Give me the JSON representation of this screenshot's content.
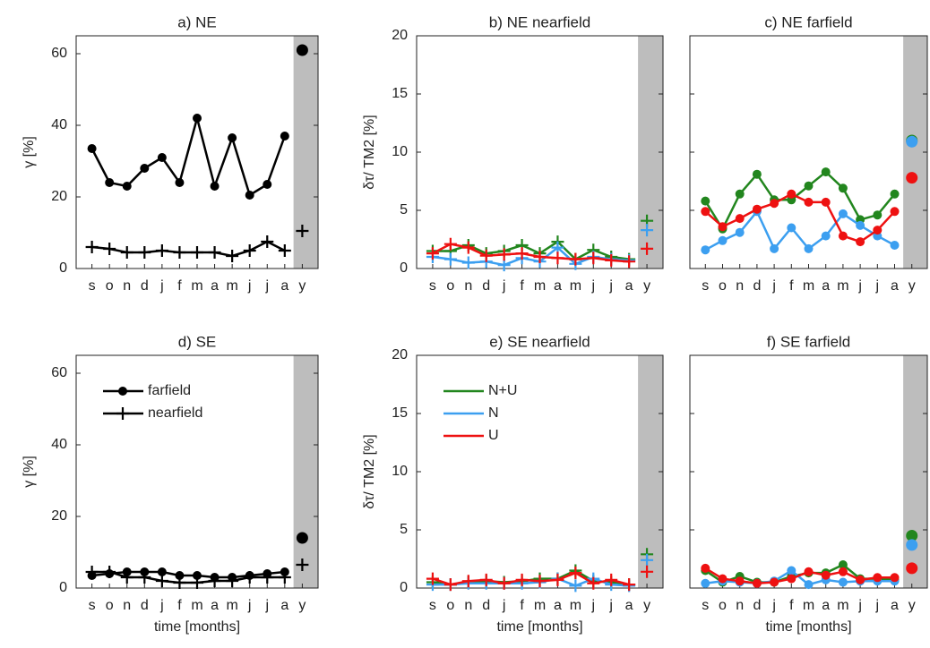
{
  "chart_data": [
    {
      "type": "line",
      "title": "a) NE",
      "ylabel": "γ [%]",
      "categories": [
        "s",
        "o",
        "n",
        "d",
        "j",
        "f",
        "m",
        "a",
        "m",
        "j",
        "j",
        "a",
        "y"
      ],
      "ylim": [
        0,
        65
      ],
      "yticks": [
        0,
        20,
        40,
        60
      ],
      "ytick_labels": true,
      "series": [
        {
          "name": "farfield",
          "color": "#000000",
          "marker": "dot",
          "values": [
            33.5,
            24,
            23,
            28,
            31,
            24,
            42,
            23,
            36.5,
            20.5,
            23.5,
            37,
            61
          ]
        },
        {
          "name": "nearfield",
          "color": "#000000",
          "marker": "plus",
          "values": [
            6,
            5.5,
            4.5,
            4.5,
            5,
            4.5,
            4.5,
            4.5,
            3.5,
            5,
            7.5,
            5,
            10.5
          ]
        }
      ]
    },
    {
      "type": "line",
      "title": "b) NE nearfield",
      "ylabel": "δτ/ TM2 [%]",
      "categories": [
        "s",
        "o",
        "n",
        "d",
        "j",
        "f",
        "m",
        "a",
        "m",
        "j",
        "j",
        "a",
        "y"
      ],
      "ylim": [
        0,
        20
      ],
      "yticks": [
        0,
        5,
        10,
        15,
        20
      ],
      "ytick_labels": true,
      "series": [
        {
          "name": "N+U",
          "color": "#22861e",
          "marker": "plus",
          "values": [
            1.5,
            1.5,
            2,
            1.3,
            1.5,
            2,
            1.3,
            2.3,
            0.8,
            1.6,
            1,
            0.8,
            4.1
          ]
        },
        {
          "name": "N",
          "color": "#3c9ff0",
          "marker": "plus",
          "values": [
            1,
            0.8,
            0.5,
            0.6,
            0.3,
            0.9,
            0.6,
            1.8,
            0.4,
            1,
            0.8,
            0.7,
            3.3
          ]
        },
        {
          "name": "U",
          "color": "#ee1111",
          "marker": "plus",
          "values": [
            1.3,
            2.1,
            1.8,
            1.1,
            1.2,
            1.3,
            1,
            0.9,
            0.8,
            0.9,
            0.7,
            0.6,
            1.7
          ]
        }
      ]
    },
    {
      "type": "line",
      "title": "c) NE farfield",
      "categories": [
        "s",
        "o",
        "n",
        "d",
        "j",
        "f",
        "m",
        "a",
        "m",
        "j",
        "j",
        "a",
        "y"
      ],
      "ylim": [
        0,
        20
      ],
      "yticks": [
        0,
        5,
        10,
        15,
        20
      ],
      "ytick_labels": false,
      "series": [
        {
          "name": "N+U",
          "color": "#22861e",
          "marker": "dot",
          "values": [
            5.8,
            3.4,
            6.4,
            8.1,
            5.9,
            5.9,
            7.1,
            8.3,
            6.9,
            4.2,
            4.6,
            6.4,
            11
          ]
        },
        {
          "name": "N",
          "color": "#3c9ff0",
          "marker": "dot",
          "values": [
            1.6,
            2.4,
            3.1,
            4.9,
            1.7,
            3.5,
            1.7,
            2.8,
            4.7,
            3.7,
            2.8,
            2,
            10.9
          ]
        },
        {
          "name": "U",
          "color": "#ee1111",
          "marker": "dot",
          "values": [
            4.9,
            3.6,
            4.3,
            5.1,
            5.6,
            6.4,
            5.7,
            5.7,
            2.8,
            2.3,
            3.3,
            4.9,
            7.8
          ]
        }
      ]
    },
    {
      "type": "line",
      "title": "d) SE",
      "ylabel": "γ [%]",
      "xlabel": "time [months]",
      "categories": [
        "s",
        "o",
        "n",
        "d",
        "j",
        "f",
        "m",
        "a",
        "m",
        "j",
        "j",
        "a",
        "y"
      ],
      "ylim": [
        0,
        65
      ],
      "yticks": [
        0,
        20,
        40,
        60
      ],
      "ytick_labels": true,
      "legend": "upper left",
      "series": [
        {
          "name": "farfield",
          "color": "#000000",
          "marker": "dot",
          "values": [
            3.5,
            4,
            4.5,
            4.5,
            4.5,
            3.5,
            3.5,
            3,
            3,
            3.5,
            4,
            4.5,
            14
          ]
        },
        {
          "name": "nearfield",
          "color": "#000000",
          "marker": "plus",
          "values": [
            4.5,
            4.5,
            3,
            3,
            2,
            1.5,
            1.5,
            2,
            2,
            3,
            3,
            3,
            6.5
          ]
        }
      ]
    },
    {
      "type": "line",
      "title": "e) SE nearfield",
      "ylabel": "δτ/ TM2 [%]",
      "xlabel": "time [months]",
      "categories": [
        "s",
        "o",
        "n",
        "d",
        "j",
        "f",
        "m",
        "a",
        "m",
        "j",
        "j",
        "a",
        "y"
      ],
      "ylim": [
        0,
        20
      ],
      "yticks": [
        0,
        5,
        10,
        15,
        20
      ],
      "ytick_labels": true,
      "legend": "upper left",
      "series": [
        {
          "name": "N+U",
          "color": "#22861e",
          "marker": "plus",
          "values": [
            0.5,
            0.3,
            0.5,
            0.6,
            0.5,
            0.6,
            0.8,
            0.8,
            1.5,
            0.6,
            0.5,
            0.3,
            2.9
          ]
        },
        {
          "name": "N",
          "color": "#3c9ff0",
          "marker": "plus",
          "values": [
            0.3,
            0.3,
            0.4,
            0.4,
            0.4,
            0.4,
            0.5,
            0.8,
            0.2,
            0.8,
            0.3,
            0.2,
            2.4
          ]
        },
        {
          "name": "U",
          "color": "#ee1111",
          "marker": "plus",
          "values": [
            0.8,
            0.3,
            0.6,
            0.7,
            0.4,
            0.7,
            0.6,
            0.7,
            1.3,
            0.4,
            0.7,
            0.3,
            1.4
          ]
        }
      ]
    },
    {
      "type": "line",
      "title": "f) SE farfield",
      "xlabel": "time [months]",
      "categories": [
        "s",
        "o",
        "n",
        "d",
        "j",
        "f",
        "m",
        "a",
        "m",
        "j",
        "j",
        "a",
        "y"
      ],
      "ylim": [
        0,
        20
      ],
      "yticks": [
        0,
        5,
        10,
        15,
        20
      ],
      "ytick_labels": false,
      "series": [
        {
          "name": "N+U",
          "color": "#22861e",
          "marker": "dot",
          "values": [
            1.5,
            0.5,
            1,
            0.5,
            0.5,
            1,
            1.3,
            1.3,
            2,
            0.8,
            0.8,
            0.7,
            4.5
          ]
        },
        {
          "name": "N",
          "color": "#3c9ff0",
          "marker": "dot",
          "values": [
            0.4,
            0.6,
            0.5,
            0.4,
            0.6,
            1.5,
            0.3,
            0.7,
            0.5,
            0.6,
            0.6,
            0.6,
            3.7
          ]
        },
        {
          "name": "U",
          "color": "#ee1111",
          "marker": "dot",
          "values": [
            1.7,
            0.8,
            0.6,
            0.4,
            0.5,
            0.8,
            1.4,
            1.1,
            1.4,
            0.7,
            0.9,
            0.9,
            1.7
          ]
        }
      ]
    }
  ]
}
